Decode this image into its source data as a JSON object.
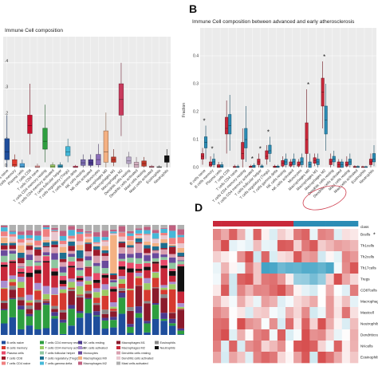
{
  "panels": {
    "b": "B",
    "d": "D"
  },
  "chart_data": [
    {
      "type": "box",
      "panel": "",
      "title": "Immune Cell composition",
      "ylim": [
        0,
        0.5
      ],
      "yticks": [
        "0",
        ".1",
        ".2",
        ".3",
        ".4"
      ],
      "categories": [
        "B cells naive",
        "B cells memory",
        "Plasma cells",
        "T cells CD8",
        "T cells CD4 naive",
        "T cells CD4 memory resting",
        "T cells CD4 memory activated",
        "T cells follicular helper",
        "T cells regulatory (Tregs)",
        "T cells gamma delta",
        "NK cells resting",
        "NK cells activated",
        "Monocytes",
        "Macrophages M0",
        "Macrophages M1",
        "Macrophages M2",
        "Dendritic cells resting",
        "Dendritic cells activated",
        "Mast cells resting",
        "Mast cells activated",
        "Eosinophils",
        "Neutrophils"
      ],
      "colors": [
        "#1f4e9c",
        "#e03c2f",
        "#4da3d9",
        "#c8102e",
        "#f2a0a0",
        "#2e9e3f",
        "#9ccc65",
        "#2e8fb0",
        "#45b8d8",
        "#d94a6a",
        "#7a6bb0",
        "#4b3a8f",
        "#8a6db8",
        "#f4b183",
        "#c0392b",
        "#c83a5c",
        "#b8a8c8",
        "#d4b0c0",
        "#c0392b",
        "#d27f8f",
        "#7e7e7e",
        "#111111"
      ],
      "boxes": [
        {
          "q1": 0.03,
          "median": 0.06,
          "q3": 0.11,
          "min": 0.0,
          "max": 0.2
        },
        {
          "q1": 0.005,
          "median": 0.01,
          "q3": 0.03,
          "min": 0.0,
          "max": 0.05
        },
        {
          "q1": 0.0,
          "median": 0.005,
          "q3": 0.015,
          "min": 0.0,
          "max": 0.03
        },
        {
          "q1": 0.13,
          "median": 0.16,
          "q3": 0.2,
          "min": 0.05,
          "max": 0.32
        },
        {
          "q1": 0.0,
          "median": 0.002,
          "q3": 0.006,
          "min": 0.0,
          "max": 0.015
        },
        {
          "q1": 0.07,
          "median": 0.1,
          "q3": 0.15,
          "min": 0.02,
          "max": 0.24
        },
        {
          "q1": 0.0,
          "median": 0.004,
          "q3": 0.01,
          "min": 0.0,
          "max": 0.02
        },
        {
          "q1": 0.0,
          "median": 0.004,
          "q3": 0.01,
          "min": 0.0,
          "max": 0.02
        },
        {
          "q1": 0.045,
          "median": 0.06,
          "q3": 0.08,
          "min": 0.02,
          "max": 0.11
        },
        {
          "q1": 0.0,
          "median": 0.002,
          "q3": 0.005,
          "min": 0.0,
          "max": 0.01
        },
        {
          "q1": 0.008,
          "median": 0.018,
          "q3": 0.03,
          "min": 0.0,
          "max": 0.05
        },
        {
          "q1": 0.008,
          "median": 0.018,
          "q3": 0.03,
          "min": 0.0,
          "max": 0.05
        },
        {
          "q1": 0.01,
          "median": 0.03,
          "q3": 0.05,
          "min": 0.0,
          "max": 0.09
        },
        {
          "q1": 0.02,
          "median": 0.06,
          "q3": 0.14,
          "min": 0.0,
          "max": 0.21
        },
        {
          "q1": 0.02,
          "median": 0.03,
          "q3": 0.04,
          "min": 0.005,
          "max": 0.07
        },
        {
          "q1": 0.2,
          "median": 0.26,
          "q3": 0.32,
          "min": 0.12,
          "max": 0.4
        },
        {
          "q1": 0.015,
          "median": 0.025,
          "q3": 0.04,
          "min": 0.0,
          "max": 0.06
        },
        {
          "q1": 0.0,
          "median": 0.01,
          "q3": 0.02,
          "min": 0.0,
          "max": 0.04
        },
        {
          "q1": 0.005,
          "median": 0.015,
          "q3": 0.025,
          "min": 0.0,
          "max": 0.04
        },
        {
          "q1": 0.0,
          "median": 0.002,
          "q3": 0.005,
          "min": 0.0,
          "max": 0.01
        },
        {
          "q1": 0.0,
          "median": 0.001,
          "q3": 0.003,
          "min": 0.0,
          "max": 0.008
        },
        {
          "q1": 0.02,
          "median": 0.03,
          "q3": 0.045,
          "min": 0.0,
          "max": 0.07
        }
      ]
    },
    {
      "type": "grouped-box",
      "panel": "B",
      "title": "Immune Cell composition between advanced and early atherosclerosis",
      "ylabel": "Fraction",
      "ylim": [
        0,
        0.5
      ],
      "yticks": [
        "0.0",
        "0.1",
        "0.2",
        "0.3",
        "0.4"
      ],
      "categories": [
        "B cells naive",
        "B cells memory",
        "Plasma cells",
        "T cells CD8",
        "T cells CD4 naive",
        "T cells CD4 memory resting",
        "T cells CD4 memory activated",
        "T cells follicular helper",
        "T cells regulatory (Tregs)",
        "T cells gamma delta",
        "NK cells resting",
        "NK cells activated",
        "Monocytes",
        "Macrophages M0",
        "Macrophages M1",
        "Macrophages M2",
        "Dendritic cells resting",
        "Dendritic cells activated",
        "Mast cells resting",
        "Mast cells activated",
        "Eosinophils",
        "Neutrophils"
      ],
      "group_colors": [
        "#c8283a",
        "#2b8cb5"
      ],
      "significant": [
        0,
        1,
        6,
        7,
        8,
        13,
        15
      ],
      "sig_mark": "*",
      "highlighted": [
        13,
        14,
        15
      ],
      "advanced": [
        {
          "q1": 0.03,
          "median": 0.04,
          "q3": 0.05,
          "min": 0.01,
          "max": 0.07
        },
        {
          "q1": 0.005,
          "median": 0.01,
          "q3": 0.02,
          "min": 0.0,
          "max": 0.04
        },
        {
          "q1": 0.0,
          "median": 0.003,
          "q3": 0.01,
          "min": 0.0,
          "max": 0.02
        },
        {
          "q1": 0.12,
          "median": 0.14,
          "q3": 0.18,
          "min": 0.05,
          "max": 0.24
        },
        {
          "q1": 0.0,
          "median": 0.002,
          "q3": 0.004,
          "min": 0.0,
          "max": 0.01
        },
        {
          "q1": 0.03,
          "median": 0.05,
          "q3": 0.09,
          "min": 0.0,
          "max": 0.14
        },
        {
          "q1": 0.0,
          "median": 0.002,
          "q3": 0.005,
          "min": 0.0,
          "max": 0.01
        },
        {
          "q1": 0.01,
          "median": 0.02,
          "q3": 0.03,
          "min": 0.0,
          "max": 0.05
        },
        {
          "q1": 0.03,
          "median": 0.04,
          "q3": 0.06,
          "min": 0.01,
          "max": 0.08
        },
        {
          "q1": 0.0,
          "median": 0.002,
          "q3": 0.005,
          "min": 0.0,
          "max": 0.01
        },
        {
          "q1": 0.005,
          "median": 0.015,
          "q3": 0.025,
          "min": 0.0,
          "max": 0.04
        },
        {
          "q1": 0.005,
          "median": 0.01,
          "q3": 0.02,
          "min": 0.0,
          "max": 0.03
        },
        {
          "q1": 0.005,
          "median": 0.01,
          "q3": 0.02,
          "min": 0.0,
          "max": 0.03
        },
        {
          "q1": 0.05,
          "median": 0.1,
          "q3": 0.16,
          "min": 0.0,
          "max": 0.28
        },
        {
          "q1": 0.015,
          "median": 0.025,
          "q3": 0.035,
          "min": 0.005,
          "max": 0.05
        },
        {
          "q1": 0.22,
          "median": 0.27,
          "q3": 0.32,
          "min": 0.14,
          "max": 0.38
        },
        {
          "q1": 0.01,
          "median": 0.02,
          "q3": 0.03,
          "min": 0.0,
          "max": 0.05
        },
        {
          "q1": 0.0,
          "median": 0.01,
          "q3": 0.02,
          "min": 0.0,
          "max": 0.03
        },
        {
          "q1": 0.005,
          "median": 0.01,
          "q3": 0.02,
          "min": 0.0,
          "max": 0.04
        },
        {
          "q1": 0.0,
          "median": 0.002,
          "q3": 0.004,
          "min": 0.0,
          "max": 0.008
        },
        {
          "q1": 0.0,
          "median": 0.001,
          "q3": 0.003,
          "min": 0.0,
          "max": 0.006
        },
        {
          "q1": 0.01,
          "median": 0.02,
          "q3": 0.03,
          "min": 0.0,
          "max": 0.05
        }
      ],
      "early": [
        {
          "q1": 0.07,
          "median": 0.09,
          "q3": 0.11,
          "min": 0.03,
          "max": 0.15
        },
        {
          "q1": 0.01,
          "median": 0.02,
          "q3": 0.03,
          "min": 0.0,
          "max": 0.05
        },
        {
          "q1": 0.0,
          "median": 0.004,
          "q3": 0.01,
          "min": 0.0,
          "max": 0.02
        },
        {
          "q1": 0.12,
          "median": 0.15,
          "q3": 0.19,
          "min": 0.06,
          "max": 0.26
        },
        {
          "q1": 0.0,
          "median": 0.002,
          "q3": 0.004,
          "min": 0.0,
          "max": 0.01
        },
        {
          "q1": 0.07,
          "median": 0.1,
          "q3": 0.14,
          "min": 0.02,
          "max": 0.22
        },
        {
          "q1": 0.0,
          "median": 0.003,
          "q3": 0.008,
          "min": 0.0,
          "max": 0.015
        },
        {
          "q1": 0.0,
          "median": 0.003,
          "q3": 0.006,
          "min": 0.0,
          "max": 0.012
        },
        {
          "q1": 0.05,
          "median": 0.06,
          "q3": 0.08,
          "min": 0.02,
          "max": 0.11
        },
        {
          "q1": 0.0,
          "median": 0.002,
          "q3": 0.005,
          "min": 0.0,
          "max": 0.01
        },
        {
          "q1": 0.01,
          "median": 0.02,
          "q3": 0.03,
          "min": 0.0,
          "max": 0.05
        },
        {
          "q1": 0.01,
          "median": 0.02,
          "q3": 0.03,
          "min": 0.0,
          "max": 0.05
        },
        {
          "q1": 0.01,
          "median": 0.02,
          "q3": 0.035,
          "min": 0.0,
          "max": 0.05
        },
        {
          "q1": 0.0,
          "median": 0.01,
          "q3": 0.02,
          "min": 0.0,
          "max": 0.05
        },
        {
          "q1": 0.01,
          "median": 0.02,
          "q3": 0.03,
          "min": 0.0,
          "max": 0.05
        },
        {
          "q1": 0.12,
          "median": 0.17,
          "q3": 0.22,
          "min": 0.06,
          "max": 0.3
        },
        {
          "q1": 0.02,
          "median": 0.03,
          "q3": 0.04,
          "min": 0.005,
          "max": 0.06
        },
        {
          "q1": 0.0,
          "median": 0.01,
          "q3": 0.02,
          "min": 0.0,
          "max": 0.03
        },
        {
          "q1": 0.01,
          "median": 0.02,
          "q3": 0.03,
          "min": 0.0,
          "max": 0.05
        },
        {
          "q1": 0.0,
          "median": 0.002,
          "q3": 0.004,
          "min": 0.0,
          "max": 0.008
        },
        {
          "q1": 0.0,
          "median": 0.001,
          "q3": 0.003,
          "min": 0.0,
          "max": 0.006
        },
        {
          "q1": 0.02,
          "median": 0.03,
          "q3": 0.05,
          "min": 0.005,
          "max": 0.08
        }
      ]
    },
    {
      "type": "stacked-bar",
      "panel": "",
      "n_samples": 22,
      "legend": [
        {
          "label": "B cells naive",
          "color": "#1f4e9c"
        },
        {
          "label": "T cells CD4 memory resting",
          "color": "#2e9e3f"
        },
        {
          "label": "NK cells resting",
          "color": "#4b3a8f"
        },
        {
          "label": "Macrophages M1",
          "color": "#8b1a2b"
        },
        {
          "label": "Eosinophils",
          "color": "#888888"
        },
        {
          "label": "B cells memory",
          "color": "#d63a2f"
        },
        {
          "label": "T cells CD4 memory activated",
          "color": "#9ccc65"
        },
        {
          "label": "NK cells activated",
          "color": "#a98fd0"
        },
        {
          "label": "Macrophages M2",
          "color": "#c8283a"
        },
        {
          "label": "Neutrophils",
          "color": "#111111"
        },
        {
          "label": "Plasma cells",
          "color": "#e84a6a"
        },
        {
          "label": "T cells follicular helper",
          "color": "#8fc7a0"
        },
        {
          "label": "Monocytes",
          "color": "#6a4a9c"
        },
        {
          "label": "Dendritic cells resting",
          "color": "#d9a0b0"
        },
        {
          "label": "",
          "color": ""
        },
        {
          "label": "T cells CD8",
          "color": "#9e1a2a"
        },
        {
          "label": "T cells regulatory (Tregs)",
          "color": "#1d6f8f"
        },
        {
          "label": "Macrophages M0",
          "color": "#f4b183"
        },
        {
          "label": "Dendritic cells activated",
          "color": "#e8c8d0"
        },
        {
          "label": "",
          "color": ""
        },
        {
          "label": "T cells CD4 naive",
          "color": "#f08080"
        },
        {
          "label": "T cells gamma delta",
          "color": "#45b8d8"
        },
        {
          "label": "Macrophages M2",
          "color": "#c06080"
        },
        {
          "label": "Mast cells activated",
          "color": "#b0b0b0"
        },
        {
          "label": "",
          "color": ""
        }
      ]
    },
    {
      "type": "heatmap",
      "panel": "D",
      "annotation_label": "class",
      "rows": [
        "Bcells",
        "Th1cells",
        "Th2cells",
        "Th17cells",
        "Tregs",
        "CD8Tcells",
        "Macrophages",
        "Mastcell",
        "Neutrophils",
        "Dendriticcells",
        "NKcells",
        "Eosinophils"
      ],
      "highlight_row": 6,
      "row_mark": "*",
      "n_cols": 18,
      "n_advanced": 10,
      "class_colors": [
        "#c8283a",
        "#2b8cb5"
      ]
    }
  ]
}
